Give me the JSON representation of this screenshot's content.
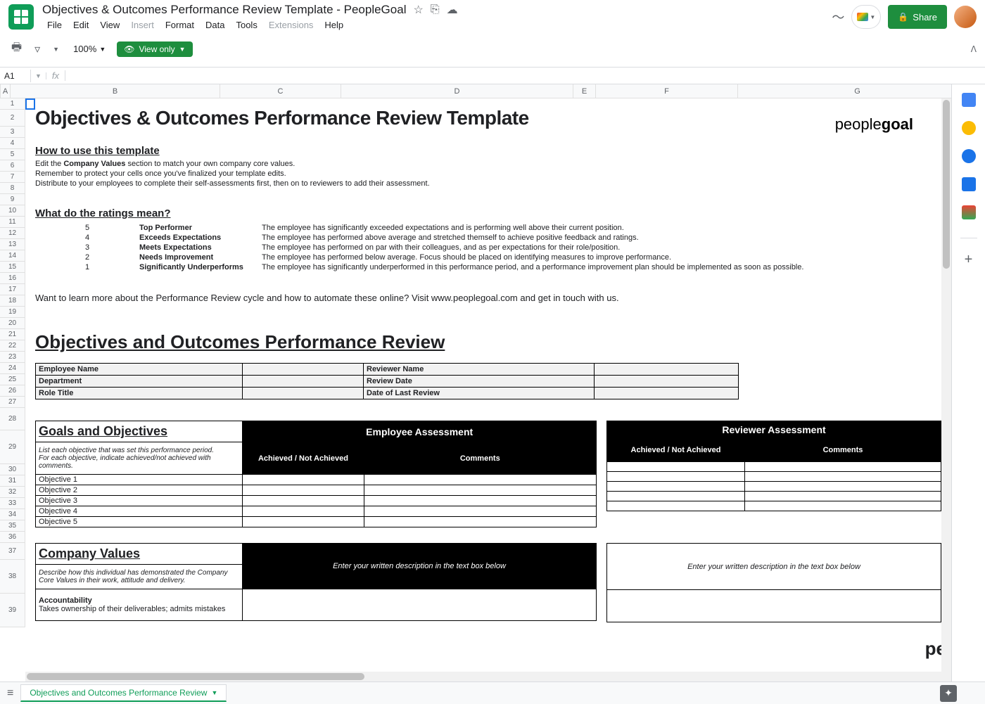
{
  "header": {
    "doc_title": "Objectives & Outcomes Performance Review Template - PeopleGoal",
    "star_icon": "☆",
    "share_label": "Share"
  },
  "menubar": {
    "file": "File",
    "edit": "Edit",
    "view": "View",
    "insert": "Insert",
    "format": "Format",
    "data": "Data",
    "tools": "Tools",
    "extensions": "Extensions",
    "help": "Help"
  },
  "toolbar": {
    "zoom": "100%",
    "view_only": "View only"
  },
  "fxbar": {
    "cell_ref": "A1",
    "fx": "fx"
  },
  "columns": {
    "widths": [
      14,
      298,
      172,
      330,
      32,
      202,
      340
    ],
    "labels": [
      "A",
      "B",
      "C",
      "D",
      "E",
      "F",
      "G"
    ]
  },
  "rows": {
    "heights": [
      16,
      24,
      16,
      16,
      16,
      16,
      16,
      16,
      16,
      16,
      16,
      16,
      16,
      16,
      16,
      16,
      16,
      16,
      16,
      16,
      16,
      16,
      16,
      16,
      16,
      16,
      16,
      32,
      48,
      16,
      16,
      16,
      16,
      16,
      16,
      16,
      24,
      48,
      48
    ],
    "labels": [
      "1",
      "2",
      "3",
      "4",
      "5",
      "6",
      "7",
      "8",
      "9",
      "10",
      "11",
      "12",
      "13",
      "14",
      "15",
      "16",
      "17",
      "18",
      "19",
      "20",
      "21",
      "22",
      "23",
      "24",
      "25",
      "26",
      "27",
      "28",
      "29",
      "30",
      "31",
      "32",
      "33",
      "34",
      "35",
      "36",
      "37",
      "38",
      "39"
    ]
  },
  "doc": {
    "title": "Objectives & Outcomes Performance Review Template",
    "brand_prefix": "people",
    "brand_suffix": "goal",
    "howto_heading": "How to use this template",
    "howto_line1_a": "Edit the ",
    "howto_line1_b": "Company Values",
    "howto_line1_c": " section to match your own company core values.",
    "howto_line2": "Remember to protect your cells once you've finalized your template edits.",
    "howto_line3": "Distribute to your employees to complete their self-assessments first, then on to reviewers to add their assessment.",
    "ratings_heading": "What do the ratings mean?",
    "ratings": [
      {
        "num": "5",
        "label": "Top Performer",
        "desc": "The employee has significantly exceeded expectations and is performing well above their current position."
      },
      {
        "num": "4",
        "label": "Exceeds Expectations",
        "desc": "The employee has performed above average and stretched themself to achieve positive feedback and ratings."
      },
      {
        "num": "3",
        "label": "Meets Expectations",
        "desc": "The employee has performed on par with their colleagues, and as per expectations for their role/position."
      },
      {
        "num": "2",
        "label": "Needs Improvement",
        "desc": "The employee has performed below average. Focus should be placed on identifying measures to improve performance."
      },
      {
        "num": "1",
        "label": "Significantly Underperforms",
        "desc": "The employee has significantly underperformed in this performance period, and a performance improvement plan should be implemented as soon as possible."
      }
    ],
    "learn_more": "Want to learn more about the Performance Review cycle and how to automate these online? Visit www.peoplegoal.com and get in touch with us.",
    "review_heading": "Objectives and Outcomes Performance Review",
    "info_fields": {
      "emp_name": "Employee Name",
      "rev_name": "Reviewer Name",
      "dept": "Department",
      "rev_date": "Review Date",
      "role": "Role Title",
      "last_rev": "Date of Last Review"
    },
    "goals": {
      "heading": "Goals and Objectives",
      "instructions": "List each objective that was set this performance period.\nFor each objective, indicate achieved/not achieved with comments.",
      "emp_hdr": "Employee Assessment",
      "rev_hdr": "Reviewer Assessment",
      "col_ach": "Achieved / Not Achieved",
      "col_com": "Comments",
      "objectives": [
        "Objective 1",
        "Objective 2",
        "Objective 3",
        "Objective 4",
        "Objective 5"
      ]
    },
    "values": {
      "heading": "Company Values",
      "instructions": "Describe how this individual has demonstrated the Company Core Values in their work, attitude and delivery.",
      "prompt": "Enter your written description in the text box below",
      "acc_title": "Accountability",
      "acc_desc": "Takes ownership of their deliverables; admits mistakes"
    }
  },
  "tabs": {
    "sheet_name": "Objectives and Outcomes Performance Review"
  },
  "side_panel": {
    "colors": [
      "#fbbc04",
      "#fbbc04",
      "#4285f4",
      "#1a73e8",
      "#ea4335"
    ]
  },
  "styling": {
    "accent_green": "#1e8e3e",
    "header_black": "#000000",
    "grey_fill": "#f2f2f2",
    "border": "#000000"
  }
}
